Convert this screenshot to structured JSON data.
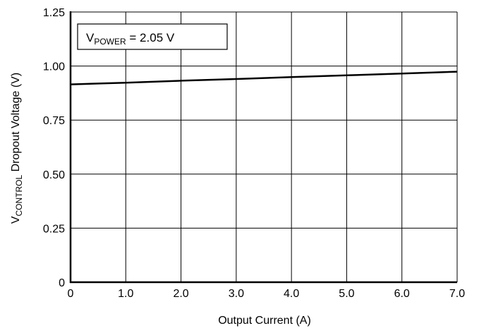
{
  "chart_data": {
    "type": "line",
    "title": "",
    "xlabel": "Output Current (A)",
    "ylabel": {
      "base": "V",
      "sub": "CONTROL",
      "rest": " Dropout Voltage (V)"
    },
    "xlim": [
      0,
      7
    ],
    "ylim": [
      0,
      1.25
    ],
    "xticks": [
      0,
      1,
      2,
      3,
      4,
      5,
      6,
      7
    ],
    "xtick_labels": [
      "0",
      "1.0",
      "2.0",
      "3.0",
      "4.0",
      "5.0",
      "6.0",
      "7.0"
    ],
    "yticks": [
      0,
      0.25,
      0.5,
      0.75,
      1.0,
      1.25
    ],
    "ytick_labels": [
      "0",
      "0.25",
      "0.50",
      "0.75",
      "1.00",
      "1.25"
    ],
    "grid": true,
    "annotation": {
      "base": "V",
      "sub": "POWER",
      "rest": " = 2.05 V"
    },
    "series": [
      {
        "x": [
          0,
          1,
          2,
          3,
          4,
          5,
          6,
          7
        ],
        "y": [
          0.915,
          0.923,
          0.932,
          0.94,
          0.949,
          0.957,
          0.965,
          0.974
        ]
      }
    ],
    "colors": {
      "line": "#000000",
      "grid": "#000000",
      "background": "#ffffff"
    }
  }
}
